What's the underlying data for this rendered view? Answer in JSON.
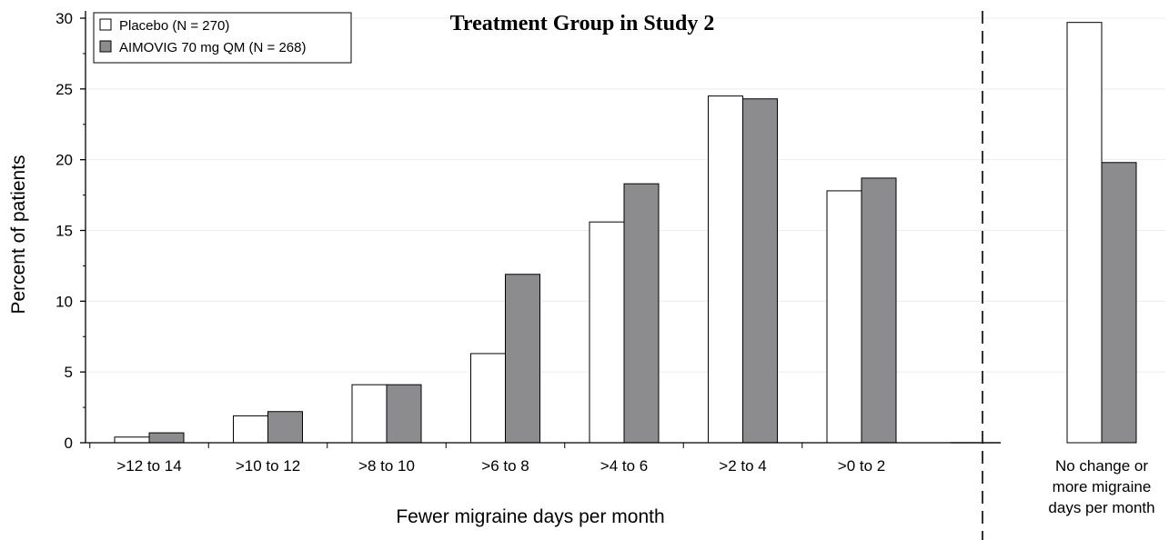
{
  "chart_data": {
    "type": "bar",
    "title": "Treatment Group in Study 2",
    "xlabel": "Fewer migraine days per month",
    "ylabel": "Percent of patients",
    "ylim": [
      0,
      30
    ],
    "yticks": [
      0,
      5,
      10,
      15,
      20,
      25,
      30
    ],
    "grid": true,
    "legend_position": "top-left",
    "categories": [
      ">12 to 14",
      ">10 to 12",
      ">8 to 10",
      ">6 to 8",
      ">4 to 6",
      ">2 to 4",
      ">0 to 2",
      "No change or more migraine days per month"
    ],
    "category_lines": [
      [
        ">12 to 14"
      ],
      [
        ">10 to 12"
      ],
      [
        ">8 to 10"
      ],
      [
        ">6 to 8"
      ],
      [
        ">4 to 6"
      ],
      [
        ">2 to 4"
      ],
      [
        ">0 to 2"
      ],
      [
        "No change or",
        "more migraine",
        "days per month"
      ]
    ],
    "series": [
      {
        "name": "Placebo (N = 270)",
        "color": "#ffffff",
        "values": [
          0.4,
          1.9,
          4.1,
          6.3,
          15.6,
          24.5,
          17.8,
          29.7
        ]
      },
      {
        "name": "AIMOVIG 70 mg QM (N = 268)",
        "color": "#8c8c8e",
        "values": [
          0.7,
          2.2,
          4.1,
          11.9,
          18.3,
          24.3,
          18.7,
          19.8
        ]
      }
    ]
  }
}
